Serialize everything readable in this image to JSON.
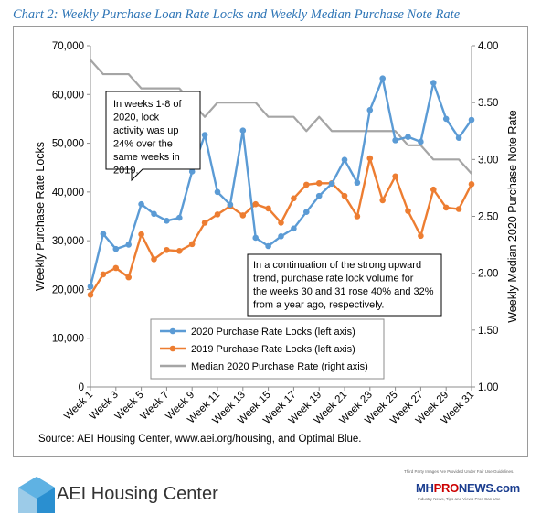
{
  "title": "Chart 2: Weekly Purchase Loan Rate Locks and Weekly Median Purchase Note Rate",
  "source": "Source: AEI Housing Center, www.aei.org/housing, and Optimal Blue.",
  "logo_left_text": "AEI Housing Center",
  "logo_right": {
    "fair_use": "Third Party Images Are Provided Under Fair Use Guidelines.",
    "brand_mh": "MH",
    "brand_pro": "PRO",
    "brand_news": "NEWS",
    "brand_com": ".com",
    "tagline": "Industry News, Tips and Views Pros Can Use"
  },
  "colors": {
    "series_2020": "#5B9BD5",
    "series_2019": "#ED7D31",
    "series_rate": "#A5A5A5",
    "title": "#2E75B6"
  },
  "chart_data": {
    "type": "line",
    "x_tick_labels": [
      "Week 1",
      "Week 3",
      "Week 5",
      "Week 7",
      "Week 9",
      "Week 11",
      "Week 13",
      "Week 15",
      "Week 17",
      "Week 19",
      "Week 21",
      "Week 23",
      "Week 25",
      "Week 27",
      "Week 29",
      "Week 31"
    ],
    "x": [
      1,
      2,
      3,
      4,
      5,
      6,
      7,
      8,
      9,
      10,
      11,
      12,
      13,
      14,
      15,
      16,
      17,
      18,
      19,
      20,
      21,
      22,
      23,
      24,
      25,
      26,
      27,
      28,
      29,
      30,
      31
    ],
    "ylabel": "Weekly Purchase Rate Locks",
    "y2label": "Weekly Median 2020 Purchase Note Rate",
    "ylim": [
      0,
      70000
    ],
    "y2lim": [
      1.0,
      4.0
    ],
    "y_ticks": [
      "0",
      "10,000",
      "20,000",
      "30,000",
      "40,000",
      "50,000",
      "60,000",
      "70,000"
    ],
    "y2_ticks": [
      "1.00",
      "1.50",
      "2.00",
      "2.50",
      "3.00",
      "3.50",
      "4.00"
    ],
    "series": [
      {
        "name": "2020 Purchase Rate Locks (left axis)",
        "axis": "left",
        "marker": "circle",
        "values": [
          20600,
          31400,
          28300,
          29200,
          37500,
          35500,
          34100,
          34700,
          44200,
          51700,
          40000,
          37400,
          52600,
          30600,
          28900,
          30900,
          32500,
          35900,
          39200,
          41700,
          46600,
          41900,
          56800,
          63300,
          50600,
          51300,
          50300,
          62400,
          55000,
          51100,
          54800
        ]
      },
      {
        "name": "2019 Purchase Rate Locks (left axis)",
        "axis": "left",
        "marker": "circle",
        "values": [
          18900,
          23100,
          24400,
          22500,
          31300,
          26200,
          28100,
          27900,
          29300,
          33700,
          35400,
          37100,
          35200,
          37500,
          36600,
          33700,
          38700,
          41500,
          41800,
          41800,
          39200,
          35000,
          46900,
          38300,
          43200,
          36100,
          31000,
          40500,
          36800,
          36500,
          41600
        ]
      },
      {
        "name": "Median 2020 Purchase Rate (right axis)",
        "axis": "right",
        "marker": "none",
        "values": [
          3.875,
          3.75,
          3.75,
          3.75,
          3.625,
          3.625,
          3.625,
          3.625,
          3.5,
          3.375,
          3.5,
          3.5,
          3.5,
          3.5,
          3.375,
          3.375,
          3.375,
          3.25,
          3.375,
          3.25,
          3.25,
          3.25,
          3.25,
          3.25,
          3.25,
          3.125,
          3.125,
          3.0,
          3.0,
          3.0,
          2.875
        ]
      }
    ],
    "annotations": [
      {
        "text": "In weeks 1-8 of 2020, lock activity was up 24% over the same weeks in 2019."
      },
      {
        "text": "In a continuation of the strong upward trend, purchase rate lock volume for the weeks 30 and 31 rose 40% and 32% from a year ago, respectively."
      }
    ],
    "legend_position": "bottom-center",
    "grid": false
  }
}
